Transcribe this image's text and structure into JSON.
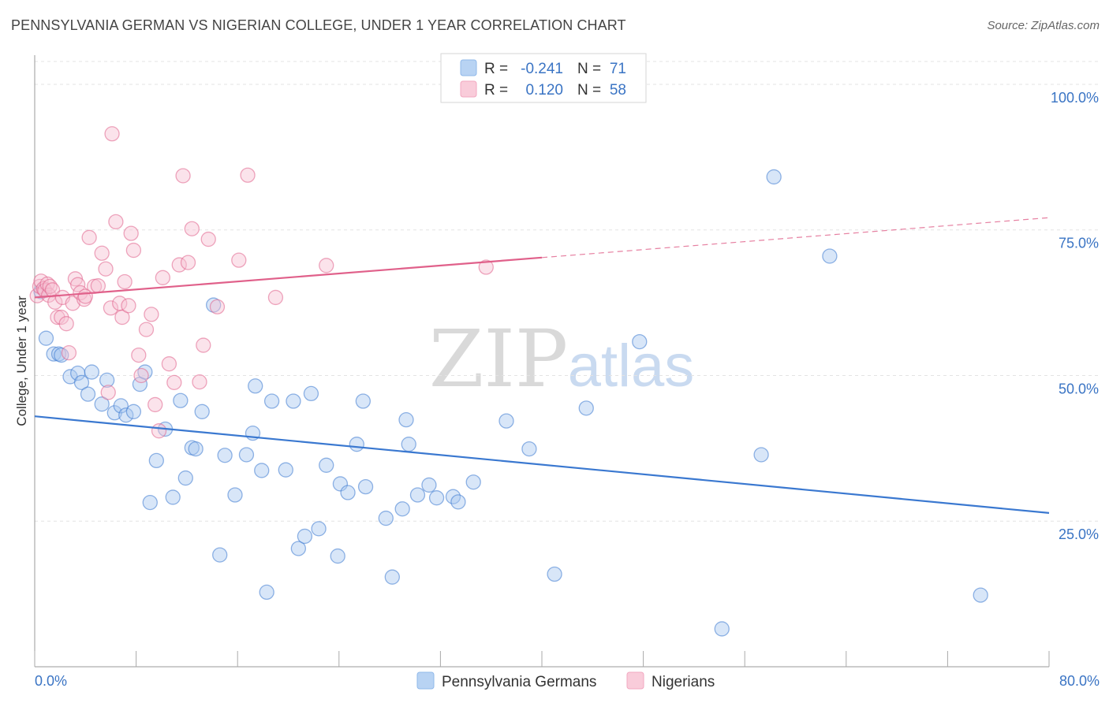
{
  "header": {
    "title": "PENNSYLVANIA GERMAN VS NIGERIAN COLLEGE, UNDER 1 YEAR CORRELATION CHART",
    "source": "Source: ZipAtlas.com"
  },
  "watermark": {
    "zip": "ZIP",
    "atlas": "atlas"
  },
  "stats_legend": {
    "rows": [
      {
        "r_label": "R =",
        "r_value": "-0.241",
        "n_label": "N =",
        "n_value": "71",
        "color": "#8fb8ea"
      },
      {
        "r_label": "R =",
        "r_value": "0.120",
        "n_label": "N =",
        "n_value": "58",
        "color": "#f2a7c0"
      }
    ]
  },
  "chart_data": {
    "type": "scatter",
    "title": "PENNSYLVANIA GERMAN VS NIGERIAN COLLEGE, UNDER 1 YEAR CORRELATION CHART",
    "xlabel": "",
    "ylabel": "College, Under 1 year",
    "xlim": [
      0,
      80
    ],
    "ylim": [
      0,
      105
    ],
    "x_tick_labels": [
      "0.0%",
      "80.0%"
    ],
    "y_ticks": [
      25,
      50,
      75,
      100
    ],
    "y_tick_labels": [
      "25.0%",
      "50.0%",
      "75.0%",
      "100.0%"
    ],
    "grid": true,
    "legend_position": "bottom",
    "series": [
      {
        "name": "Pennsylvania Germans",
        "color": "#3a78d0",
        "fill": "#a9c8ef",
        "trend": {
          "x": [
            0,
            80
          ],
          "y": [
            43.0,
            26.4
          ],
          "dashed_from": null
        },
        "points": [
          [
            0.9,
            56.4
          ],
          [
            1.5,
            53.7
          ],
          [
            1.9,
            53.7
          ],
          [
            2.1,
            53.5
          ],
          [
            2.8,
            49.8
          ],
          [
            3.4,
            50.4
          ],
          [
            3.7,
            48.8
          ],
          [
            4.2,
            46.8
          ],
          [
            4.5,
            50.6
          ],
          [
            5.3,
            45.1
          ],
          [
            5.7,
            49.2
          ],
          [
            6.3,
            43.6
          ],
          [
            6.8,
            44.8
          ],
          [
            7.2,
            43.2
          ],
          [
            7.8,
            43.8
          ],
          [
            8.3,
            48.5
          ],
          [
            8.7,
            50.6
          ],
          [
            9.1,
            28.2
          ],
          [
            9.6,
            35.4
          ],
          [
            10.3,
            40.8
          ],
          [
            10.9,
            29.1
          ],
          [
            11.5,
            45.7
          ],
          [
            11.9,
            32.4
          ],
          [
            12.4,
            37.6
          ],
          [
            12.7,
            37.4
          ],
          [
            13.2,
            43.8
          ],
          [
            14.1,
            62.1
          ],
          [
            14.6,
            19.2
          ],
          [
            15.0,
            36.3
          ],
          [
            15.8,
            29.5
          ],
          [
            16.7,
            36.4
          ],
          [
            17.2,
            40.1
          ],
          [
            17.4,
            48.2
          ],
          [
            17.9,
            33.7
          ],
          [
            18.3,
            12.8
          ],
          [
            18.7,
            45.6
          ],
          [
            19.8,
            33.8
          ],
          [
            20.4,
            45.6
          ],
          [
            20.8,
            20.3
          ],
          [
            21.3,
            22.4
          ],
          [
            21.8,
            46.9
          ],
          [
            22.4,
            23.7
          ],
          [
            23.0,
            34.6
          ],
          [
            23.9,
            19.0
          ],
          [
            24.1,
            31.4
          ],
          [
            24.7,
            29.9
          ],
          [
            25.4,
            38.2
          ],
          [
            25.9,
            45.6
          ],
          [
            26.1,
            30.9
          ],
          [
            27.7,
            25.5
          ],
          [
            28.2,
            15.4
          ],
          [
            29.0,
            27.1
          ],
          [
            29.3,
            42.4
          ],
          [
            29.5,
            38.2
          ],
          [
            30.2,
            29.5
          ],
          [
            31.1,
            31.2
          ],
          [
            31.7,
            29.0
          ],
          [
            33.0,
            29.2
          ],
          [
            33.4,
            28.3
          ],
          [
            34.6,
            31.7
          ],
          [
            37.2,
            42.2
          ],
          [
            39.0,
            37.4
          ],
          [
            41.0,
            15.9
          ],
          [
            43.5,
            44.4
          ],
          [
            47.7,
            55.8
          ],
          [
            54.2,
            6.5
          ],
          [
            57.3,
            36.4
          ],
          [
            58.3,
            84.1
          ],
          [
            62.7,
            70.5
          ],
          [
            74.6,
            12.3
          ],
          [
            0.5,
            64.4
          ]
        ]
      },
      {
        "name": "Nigerians",
        "color": "#e0608a",
        "fill": "#f7c1d3",
        "trend": {
          "x": [
            0,
            80
          ],
          "y": [
            63.4,
            77.1
          ],
          "dashed_from": 40
        },
        "points": [
          [
            0.2,
            63.7
          ],
          [
            0.4,
            65.3
          ],
          [
            0.5,
            66.2
          ],
          [
            0.7,
            64.9
          ],
          [
            0.8,
            64.6
          ],
          [
            1.0,
            65.7
          ],
          [
            1.1,
            63.8
          ],
          [
            1.2,
            65.3
          ],
          [
            1.4,
            64.7
          ],
          [
            1.6,
            62.6
          ],
          [
            1.8,
            60.0
          ],
          [
            2.1,
            60.0
          ],
          [
            2.2,
            63.4
          ],
          [
            2.5,
            58.9
          ],
          [
            2.7,
            53.9
          ],
          [
            3.0,
            62.4
          ],
          [
            3.2,
            66.6
          ],
          [
            3.4,
            65.6
          ],
          [
            3.6,
            64.2
          ],
          [
            3.9,
            63.1
          ],
          [
            4.0,
            63.6
          ],
          [
            4.3,
            73.7
          ],
          [
            4.7,
            65.3
          ],
          [
            5.0,
            65.4
          ],
          [
            5.3,
            71.0
          ],
          [
            5.6,
            68.3
          ],
          [
            6.0,
            61.6
          ],
          [
            6.1,
            91.5
          ],
          [
            6.4,
            76.4
          ],
          [
            6.7,
            62.4
          ],
          [
            6.9,
            60.0
          ],
          [
            7.1,
            66.1
          ],
          [
            7.4,
            62.0
          ],
          [
            7.6,
            74.4
          ],
          [
            7.8,
            71.5
          ],
          [
            8.2,
            53.5
          ],
          [
            8.4,
            50.0
          ],
          [
            8.8,
            57.9
          ],
          [
            9.2,
            60.5
          ],
          [
            9.5,
            45.0
          ],
          [
            9.8,
            40.5
          ],
          [
            10.1,
            66.8
          ],
          [
            10.6,
            52.0
          ],
          [
            11.0,
            48.8
          ],
          [
            11.4,
            69.0
          ],
          [
            11.7,
            84.3
          ],
          [
            12.1,
            69.4
          ],
          [
            12.4,
            75.2
          ],
          [
            13.0,
            48.9
          ],
          [
            13.3,
            55.2
          ],
          [
            13.7,
            73.4
          ],
          [
            14.4,
            61.8
          ],
          [
            16.1,
            69.8
          ],
          [
            16.8,
            84.4
          ],
          [
            19.0,
            63.4
          ],
          [
            23.0,
            68.9
          ],
          [
            35.6,
            68.6
          ],
          [
            5.8,
            47.1
          ]
        ]
      }
    ]
  }
}
